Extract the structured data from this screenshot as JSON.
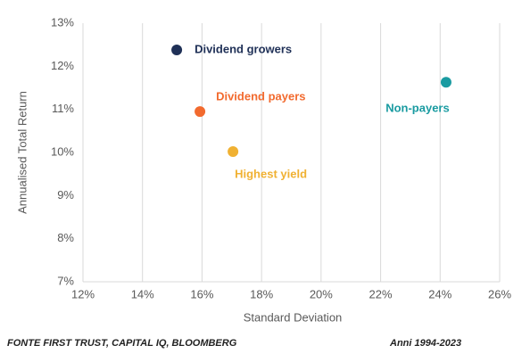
{
  "chart_data": {
    "type": "scatter",
    "xlabel": "Standard Deviation",
    "ylabel": "Annualised Total Return",
    "xlim": [
      12,
      26
    ],
    "ylim": [
      7,
      13
    ],
    "xticks": [
      {
        "value": 12,
        "label": "12%"
      },
      {
        "value": 14,
        "label": "14%"
      },
      {
        "value": 16,
        "label": "16%"
      },
      {
        "value": 18,
        "label": "18%"
      },
      {
        "value": 20,
        "label": "20%"
      },
      {
        "value": 22,
        "label": "22%"
      },
      {
        "value": 24,
        "label": "24%"
      },
      {
        "value": 26,
        "label": "26%"
      }
    ],
    "yticks": [
      {
        "value": 7,
        "label": "7%"
      },
      {
        "value": 8,
        "label": "8%"
      },
      {
        "value": 9,
        "label": "9%"
      },
      {
        "value": 10,
        "label": "10%"
      },
      {
        "value": 11,
        "label": "11%"
      },
      {
        "value": 12,
        "label": "12%"
      },
      {
        "value": 13,
        "label": "13%"
      }
    ],
    "grid": true,
    "series": [
      {
        "name": "Dividend growers",
        "color": "#1f3057",
        "x": [
          15.15
        ],
        "values": [
          12.38
        ]
      },
      {
        "name": "Dividend payers",
        "color": "#f26a2e",
        "x": [
          15.93
        ],
        "values": [
          10.95
        ]
      },
      {
        "name": "Highest yield",
        "color": "#f0b132",
        "x": [
          17.04
        ],
        "values": [
          10.02
        ]
      },
      {
        "name": "Non-payers",
        "color": "#1a9ba1",
        "x": [
          24.2
        ],
        "values": [
          11.63
        ]
      }
    ]
  },
  "footer": {
    "source": "FONTE FIRST TRUST, CAPITAL IQ, BLOOMBERG",
    "period": "Anni 1994-2023"
  }
}
